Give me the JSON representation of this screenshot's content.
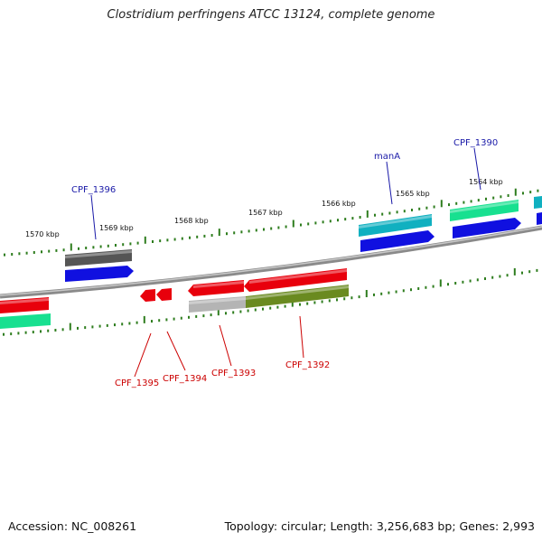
{
  "title": "Clostridium perfringens ATCC 13124, complete genome",
  "footer": {
    "accession_label": "Accession:",
    "accession": "NC_008261",
    "topology_label": "Topology:",
    "topology": "circular",
    "length_label": "Length:",
    "length": "3,256,683 bp",
    "genes_label": "Genes:",
    "genes": "2,993"
  },
  "colors": {
    "backbone": "#8a8a8a",
    "tick": "#2e7d1e",
    "forward_label": "#1a1aa8",
    "reverse_label": "#cc0000",
    "red": "#e8000c",
    "blue": "#1010e0",
    "cyan": "#10b0c0",
    "spring_green": "#18e090",
    "dark_gray": "#555555",
    "light_gray": "#b4b4b4",
    "olive": "#6a8a20"
  },
  "scale": {
    "labels": [
      "1570 kbp",
      "1569 kbp",
      "1568 kbp",
      "1567 kbp",
      "1566 kbp",
      "1565 kbp",
      "1564 kbp"
    ]
  },
  "gene_labels": {
    "forward": [
      "CPF_1396",
      "manA",
      "CPF_1390"
    ],
    "reverse": [
      "CPF_1395",
      "CPF_1394",
      "CPF_1393",
      "CPF_1392"
    ]
  }
}
